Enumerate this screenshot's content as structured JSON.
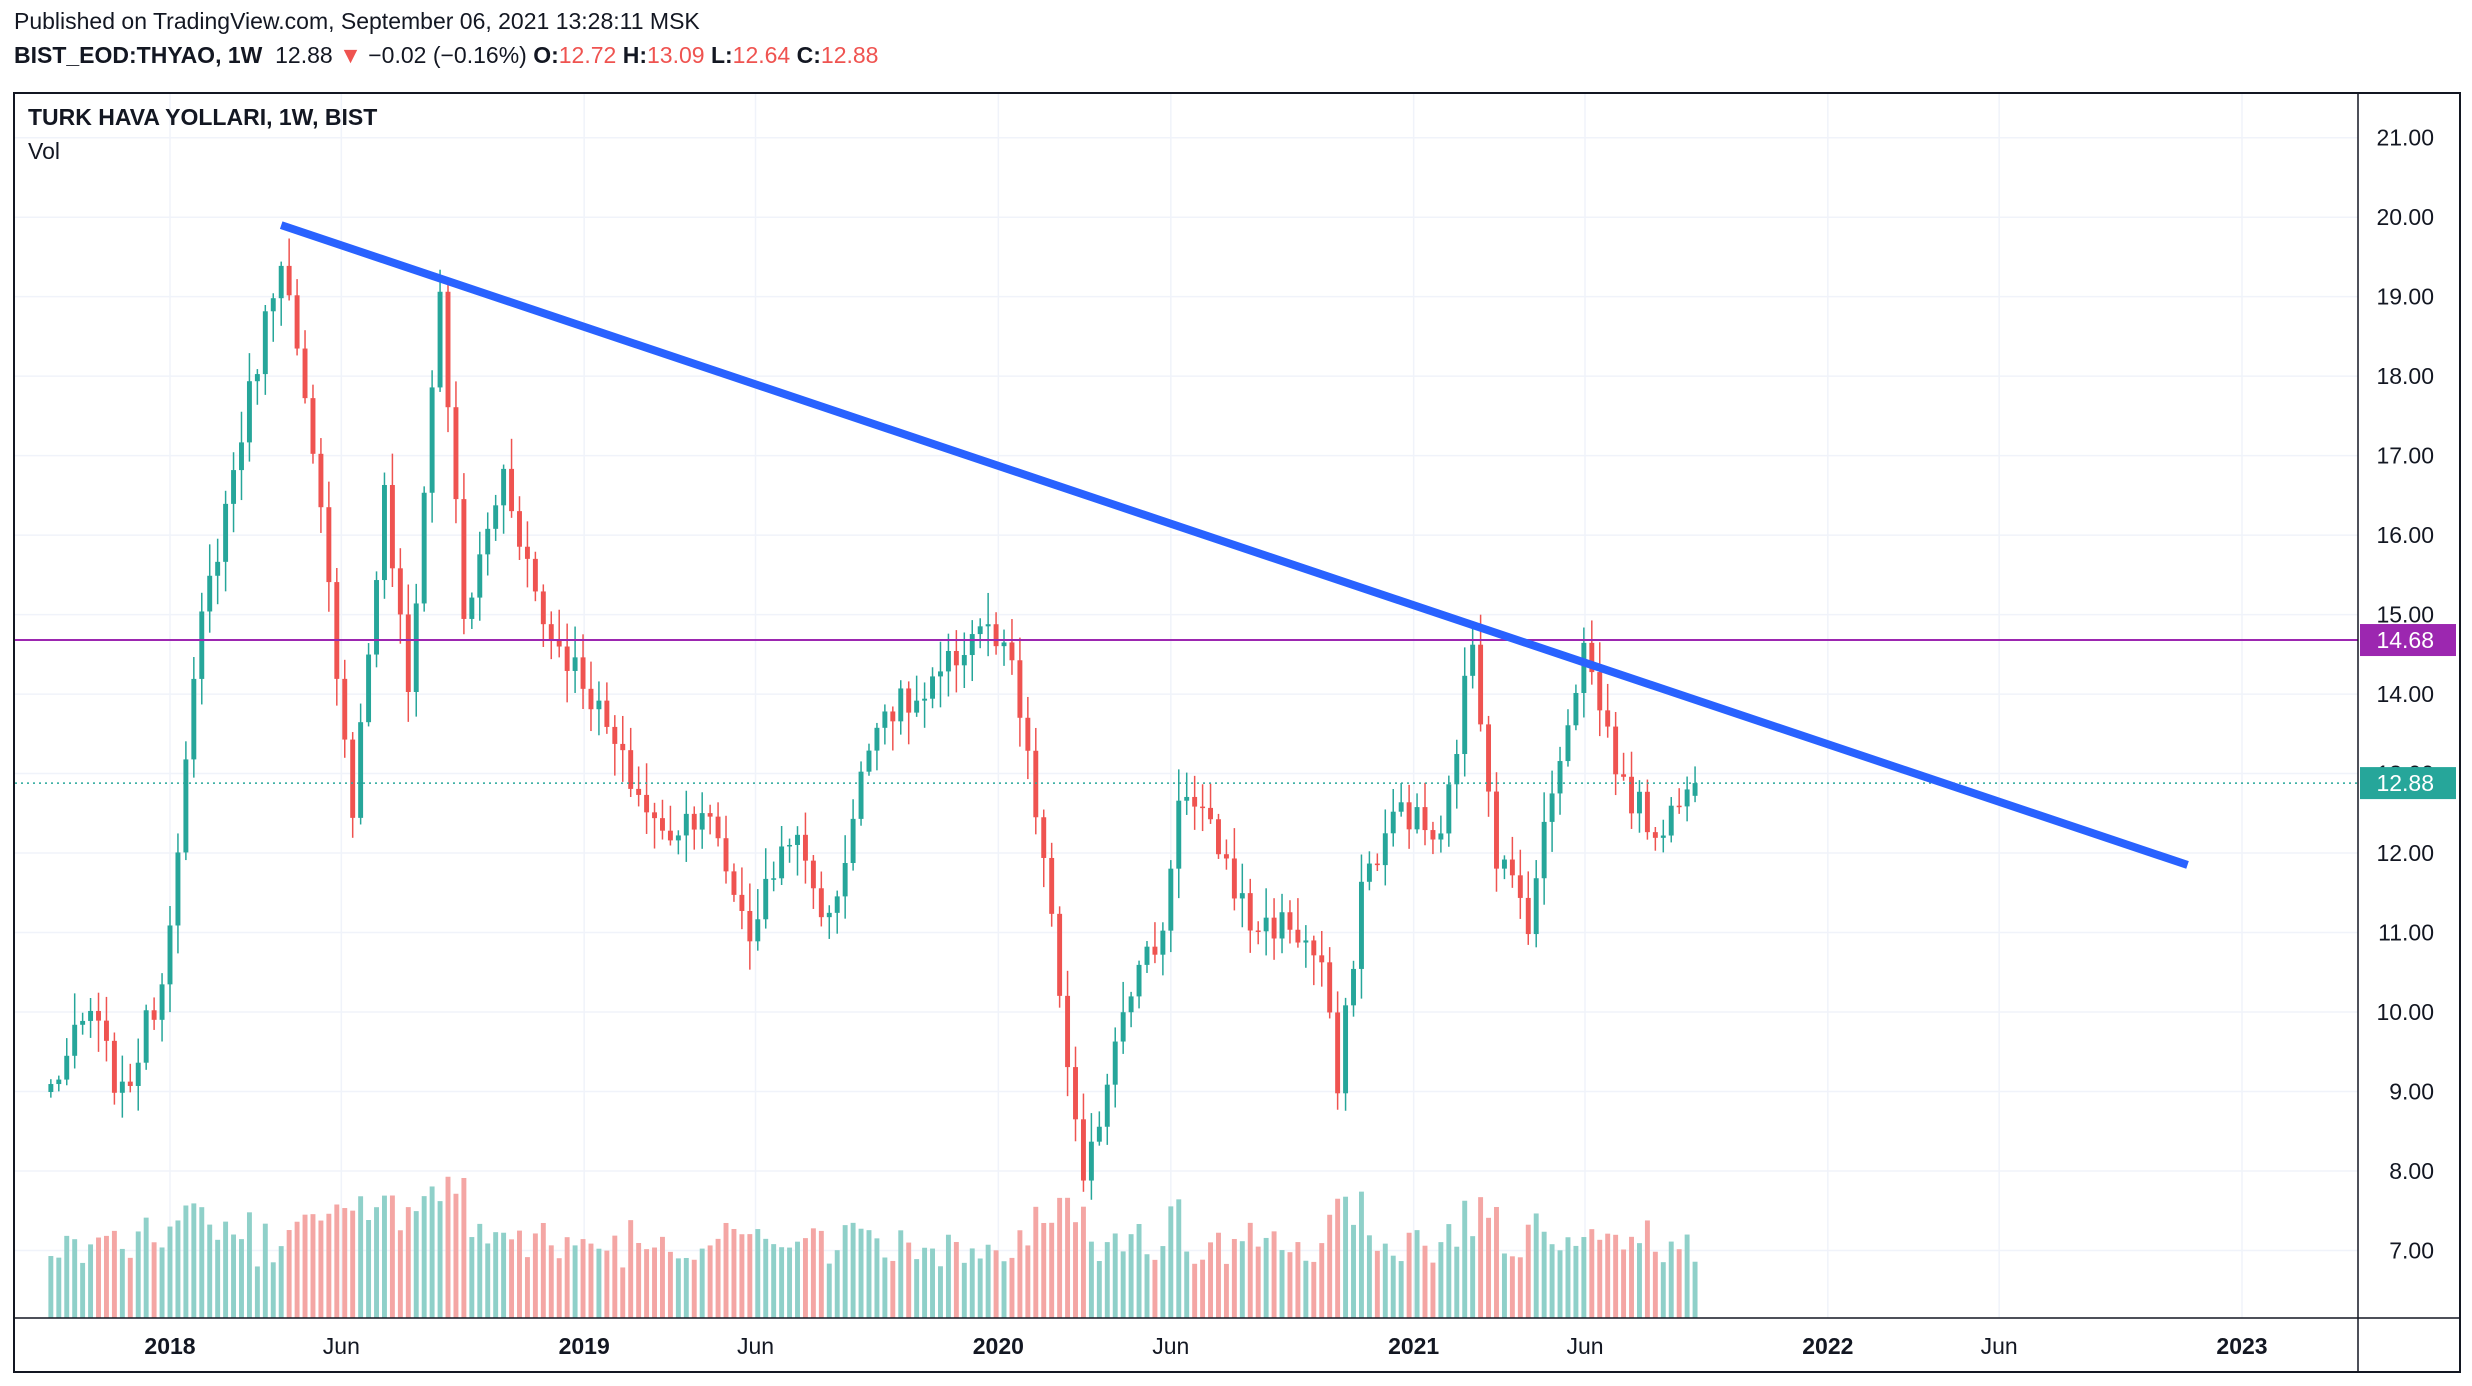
{
  "header": {
    "published": "Published on TradingView.com, September 06, 2021 13:28:11 MSK",
    "symbol": "BIST_EOD:THYAO, 1W",
    "last": "12.88",
    "change": "−0.02 (−0.16%)",
    "open_label": "O:",
    "open": "12.72",
    "high_label": "H:",
    "high": "13.09",
    "low_label": "L:",
    "low": "12.64",
    "close_label": "C:",
    "close": "12.88"
  },
  "legend": {
    "title": "TURK HAVA YOLLARI, 1W, BIST",
    "volume": "Vol"
  },
  "colors": {
    "up": "#26a69a",
    "down": "#ef5350",
    "up_volume": "#8fd0c9",
    "down_volume": "#f4a6a4",
    "trendline": "#2962ff",
    "level_line": "#9c27b0",
    "grid": "#f0f3fa"
  },
  "chart_data": {
    "type": "candlestick",
    "interval": "1W",
    "yaxis_ticks": [
      7,
      8,
      9,
      10,
      11,
      12,
      13,
      14,
      15,
      16,
      17,
      18,
      19,
      20,
      21
    ],
    "ylim": [
      6.15,
      21.55
    ],
    "xaxis_ticks": [
      "2018",
      "Jun",
      "2019",
      "Jun",
      "2020",
      "Jun",
      "2021",
      "Jun",
      "2022",
      "Jun",
      "2023"
    ],
    "xaxis_tick_dates": [
      "2018-01-01",
      "2018-06-01",
      "2019-01-01",
      "2019-06-01",
      "2020-01-01",
      "2020-06-01",
      "2021-01-01",
      "2021-06-01",
      "2022-01-01",
      "2022-06-01",
      "2023-01-01"
    ],
    "price_labels": [
      {
        "value": 14.68,
        "text": "14.68",
        "color": "#9c27b0"
      },
      {
        "value": 12.88,
        "text": "12.88",
        "color": "#26a69a"
      }
    ],
    "horizontal_line": 14.68,
    "last_price_line": 12.88,
    "trendline": {
      "start": [
        "2018-04-09",
        19.9
      ],
      "end": [
        "2022-11-14",
        11.85
      ]
    },
    "series_key_points": [
      [
        "2017-09-18",
        9.05
      ],
      [
        "2017-10-23",
        10.0
      ],
      [
        "2017-11-20",
        8.9
      ],
      [
        "2017-12-25",
        10.4
      ],
      [
        "2018-01-29",
        14.9
      ],
      [
        "2018-03-05",
        17.3
      ],
      [
        "2018-04-09",
        19.6
      ],
      [
        "2018-05-14",
        16.2
      ],
      [
        "2018-06-11",
        12.6
      ],
      [
        "2018-07-09",
        16.5
      ],
      [
        "2018-07-30",
        14.0
      ],
      [
        "2018-08-27",
        19.1
      ],
      [
        "2018-09-17",
        14.9
      ],
      [
        "2018-10-22",
        16.8
      ],
      [
        "2018-11-26",
        14.9
      ],
      [
        "2018-12-31",
        14.2
      ],
      [
        "2019-02-04",
        13.1
      ],
      [
        "2019-03-11",
        12.2
      ],
      [
        "2019-04-15",
        12.6
      ],
      [
        "2019-05-27",
        11.0
      ],
      [
        "2019-07-01",
        12.3
      ],
      [
        "2019-08-05",
        11.1
      ],
      [
        "2019-09-16",
        13.8
      ],
      [
        "2019-10-28",
        13.9
      ],
      [
        "2019-12-16",
        14.9
      ],
      [
        "2020-01-13",
        14.3
      ],
      [
        "2020-02-10",
        11.9
      ],
      [
        "2020-03-16",
        7.7
      ],
      [
        "2020-04-20",
        10.2
      ],
      [
        "2020-05-25",
        11.0
      ],
      [
        "2020-06-08",
        12.8
      ],
      [
        "2020-07-13",
        12.1
      ],
      [
        "2020-08-10",
        11.1
      ],
      [
        "2020-09-14",
        11.1
      ],
      [
        "2020-10-12",
        10.6
      ],
      [
        "2020-10-26",
        9.0
      ],
      [
        "2020-11-16",
        11.6
      ],
      [
        "2020-12-21",
        12.6
      ],
      [
        "2021-01-25",
        12.1
      ],
      [
        "2021-02-22",
        14.7
      ],
      [
        "2021-03-15",
        12.0
      ],
      [
        "2021-04-12",
        11.2
      ],
      [
        "2021-05-10",
        13.3
      ],
      [
        "2021-05-31",
        14.6
      ],
      [
        "2021-07-05",
        12.8
      ],
      [
        "2021-08-02",
        12.3
      ],
      [
        "2021-08-30",
        12.72
      ],
      [
        "2021-09-06",
        12.88
      ]
    ],
    "last_candle": {
      "date": "2021-09-06",
      "open": 12.72,
      "high": 13.09,
      "low": 12.64,
      "close": 12.88
    }
  }
}
